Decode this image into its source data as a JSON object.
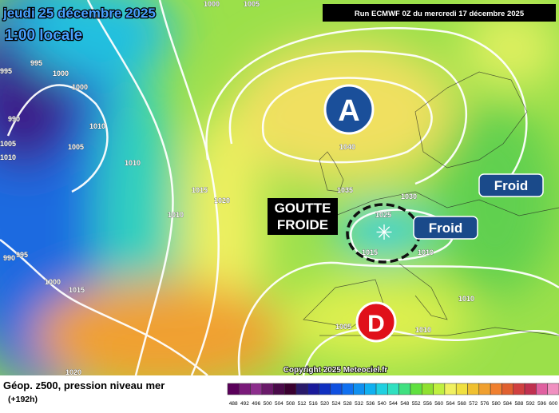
{
  "header": {
    "date": "jeudi 25 décembre 2025",
    "time": "1:00 locale",
    "run": "Run ECMWF 0Z du mercredi 17 décembre 2025"
  },
  "map": {
    "high": "A",
    "low": "D",
    "cold_drop": [
      "GOUTTE",
      "FROIDE"
    ],
    "cold_labels": [
      "Froid",
      "Froid"
    ],
    "isobar_labels": [
      "1005",
      "1000",
      "995",
      "995",
      "1000",
      "1000",
      "990",
      "1010",
      "1005",
      "1010",
      "1005",
      "1010",
      "1015",
      "1020",
      "1010",
      "1040",
      "1035",
      "1030",
      "1025",
      "1015",
      "1010",
      "995",
      "990",
      "1000",
      "1015",
      "1010",
      "1005",
      "1010",
      "1020"
    ],
    "copyright": "Copyright 2025 Meteociel.fr"
  },
  "legend": {
    "title": "Géop. z500, pression niveau mer",
    "subtitle": "(+192h)",
    "values": [
      488,
      492,
      496,
      500,
      504,
      508,
      512,
      516,
      520,
      524,
      528,
      532,
      536,
      540,
      544,
      548,
      552,
      556,
      560,
      564,
      568,
      572,
      576,
      580,
      584,
      588,
      592,
      596,
      600
    ],
    "colors": [
      "#5a005a",
      "#7a1a7a",
      "#8c2e8c",
      "#6a1a6a",
      "#4a0a4a",
      "#3a0030",
      "#2a1a6a",
      "#1a1a9a",
      "#1030c0",
      "#1050e0",
      "#1070f0",
      "#1090f0",
      "#10b0f0",
      "#20d0e0",
      "#30e0c0",
      "#40e080",
      "#60e040",
      "#90e030",
      "#c0f040",
      "#f0f060",
      "#f0e040",
      "#f0c030",
      "#f0a030",
      "#f08030",
      "#e06030",
      "#d04040",
      "#c03050",
      "#e060a0",
      "#f090c0"
    ]
  }
}
